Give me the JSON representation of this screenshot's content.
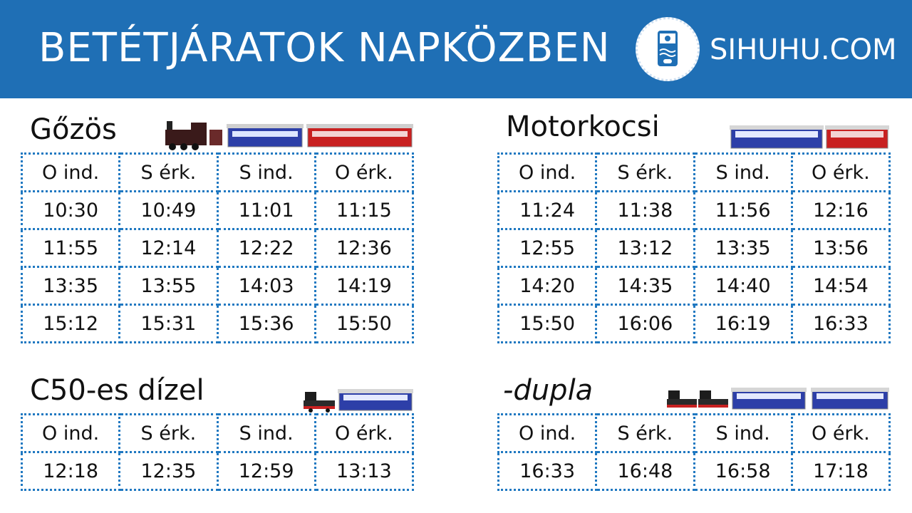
{
  "header": {
    "title": "BETÉTJÁRATOK NAPKÖZBEN",
    "site": "SIHUHU.COM",
    "logo_icon": "sihuhu-logo-icon",
    "background": "#1f6fb5"
  },
  "colors": {
    "border": "#1f78c1",
    "coach_blue": "#2d3fa8",
    "coach_red": "#c82020",
    "loco": "#222222"
  },
  "columns": [
    "O ind.",
    "S érk.",
    "S ind.",
    "O érk."
  ],
  "sections": [
    {
      "title": "Gőzös",
      "rows": [
        [
          "10:30",
          "10:49",
          "11:01",
          "11:15"
        ],
        [
          "11:55",
          "12:14",
          "12:22",
          "12:36"
        ],
        [
          "13:35",
          "13:55",
          "14:03",
          "14:19"
        ],
        [
          "15:12",
          "15:31",
          "15:36",
          "15:50"
        ]
      ]
    },
    {
      "title": "Motorkocsi",
      "rows": [
        [
          "11:24",
          "11:38",
          "11:56",
          "12:16"
        ],
        [
          "12:55",
          "13:12",
          "13:35",
          "13:56"
        ],
        [
          "14:20",
          "14:35",
          "14:40",
          "14:54"
        ],
        [
          "15:50",
          "16:06",
          "16:19",
          "16:33"
        ]
      ]
    },
    {
      "title": "C50-es dízel",
      "rows": [
        [
          "12:18",
          "12:35",
          "12:59",
          "13:13"
        ]
      ]
    },
    {
      "title": "-dupla",
      "rows": [
        [
          "16:33",
          "16:48",
          "16:58",
          "17:18"
        ]
      ]
    }
  ]
}
